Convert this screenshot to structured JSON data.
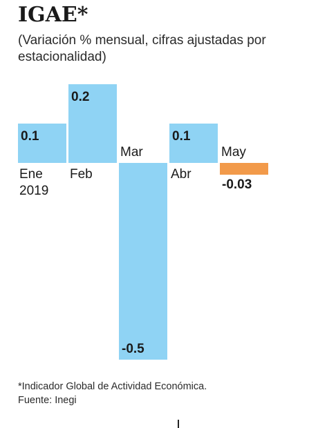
{
  "title": "IGAE*",
  "subtitle": "(Variación % mensual, cifras ajustadas por estacionalidad)",
  "colors": {
    "positive": "#8fd3f4",
    "negative_last": "#f29a4a",
    "text": "#1a1a1a"
  },
  "chart_data": {
    "type": "bar",
    "categories": [
      "Ene 2019",
      "Feb",
      "Mar",
      "Abr",
      "May"
    ],
    "category_lines": [
      [
        "Ene",
        "2019"
      ],
      [
        "Feb"
      ],
      [
        "Mar"
      ],
      [
        "Abr"
      ],
      [
        "May"
      ]
    ],
    "values": [
      0.1,
      0.2,
      -0.5,
      0.1,
      -0.03
    ],
    "value_labels": [
      "0.1",
      "0.2",
      "-0.5",
      "0.1",
      "-0.03"
    ],
    "title": "IGAE*",
    "subtitle": "(Variación % mensual, cifras ajustadas por estacionalidad)",
    "xlabel": "",
    "ylabel": "",
    "grid": false,
    "legend": "none"
  },
  "footnote": {
    "line1": "*Indicador Global de Actividad Económica.",
    "line2": "Fuente: Inegi"
  }
}
